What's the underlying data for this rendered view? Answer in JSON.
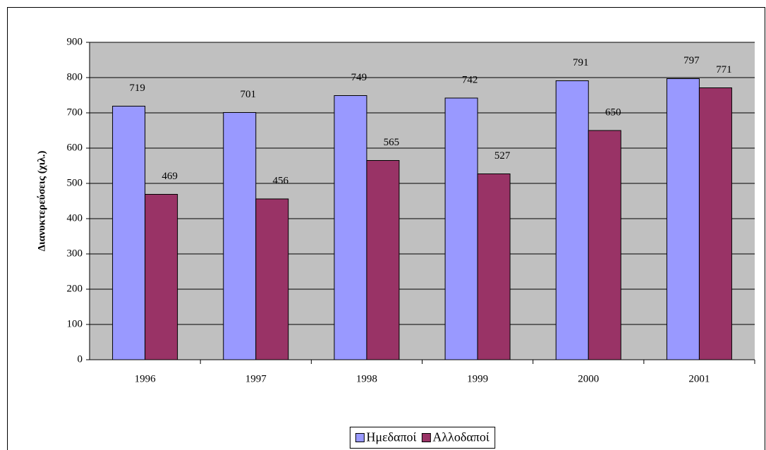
{
  "chart_data": {
    "type": "bar",
    "categories": [
      "1996",
      "1997",
      "1998",
      "1999",
      "2000",
      "2001"
    ],
    "series": [
      {
        "name": "Ημεδαποί",
        "color": "#9999ff",
        "values": [
          719,
          701,
          749,
          742,
          791,
          797
        ]
      },
      {
        "name": "Αλλοδαποί",
        "color": "#993366",
        "values": [
          469,
          456,
          565,
          527,
          650,
          771
        ]
      }
    ],
    "ylabel": "Διανυκτερεύσεις (χιλ.)",
    "ylim": [
      0,
      900
    ],
    "yticks": [
      0,
      100,
      200,
      300,
      400,
      500,
      600,
      700,
      800,
      900
    ],
    "grid": true,
    "legend": "bottom"
  }
}
